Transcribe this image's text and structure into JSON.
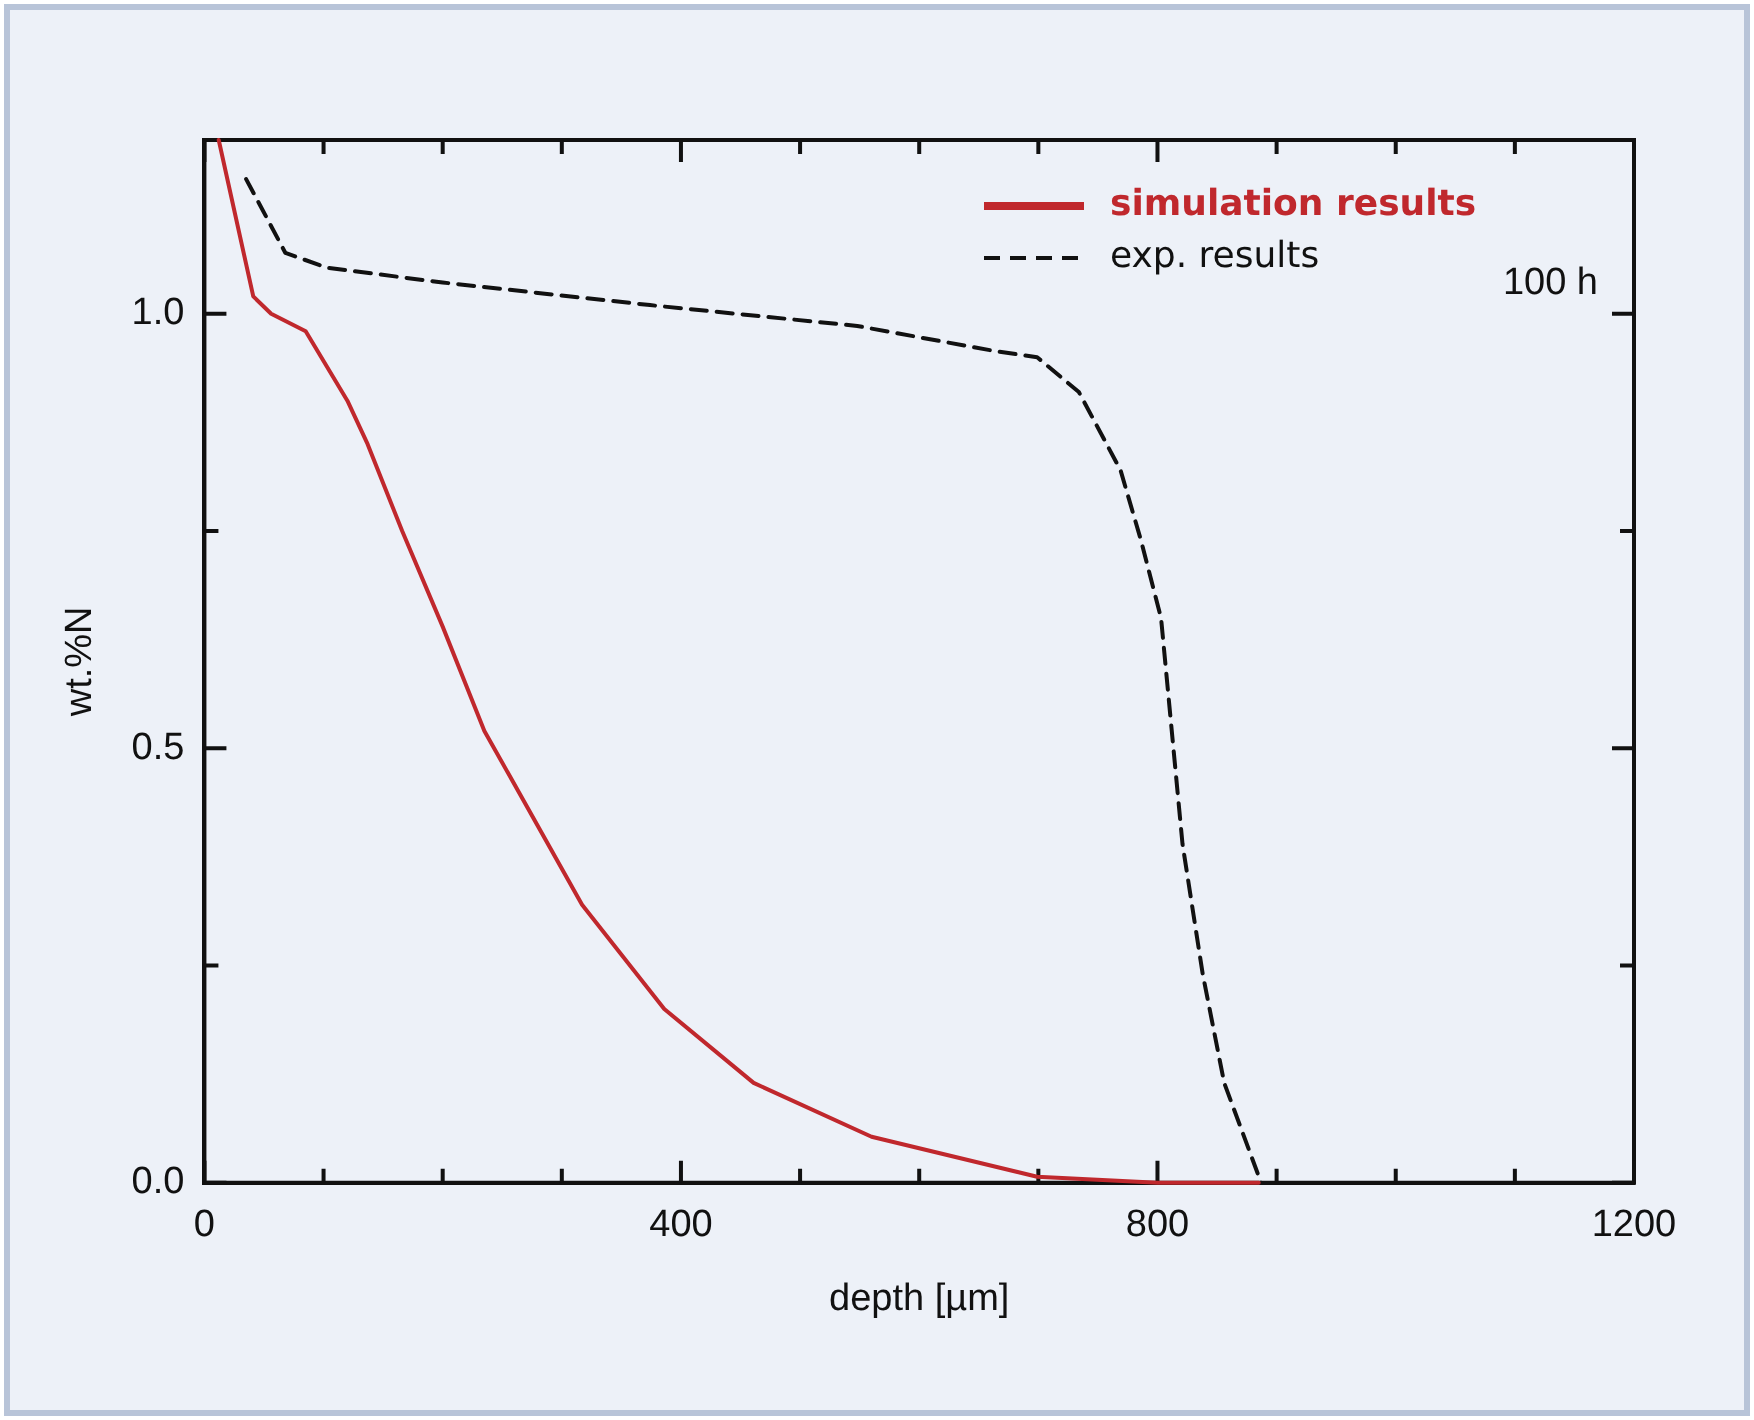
{
  "chart_data": {
    "type": "line",
    "xlabel": "depth [µm]",
    "ylabel": "wt.%N",
    "xlim": [
      0,
      1200
    ],
    "ylim": [
      0,
      1.2
    ],
    "xticks": [
      0,
      {
        "value": 100,
        "label": null
      },
      {
        "value": 200,
        "label": null
      },
      {
        "value": 300,
        "label": null
      },
      400,
      {
        "value": 500,
        "label": null
      },
      {
        "value": 600,
        "label": null
      },
      {
        "value": 700,
        "label": null
      },
      800,
      {
        "value": 900,
        "label": null
      },
      {
        "value": 1000,
        "label": null
      },
      {
        "value": 1100,
        "label": null
      },
      1200
    ],
    "yticks": [
      {
        "value": 0,
        "label": "0.0"
      },
      {
        "value": 0.25,
        "label": null
      },
      0.5,
      {
        "value": 0.75,
        "label": null
      },
      {
        "value": 1,
        "label": "1.0"
      }
    ],
    "grid": false,
    "legend": "top right",
    "marker": "none",
    "annotations": [
      "100 h"
    ],
    "series": [
      {
        "name": "simulation results",
        "color": "#c0282d",
        "line_style": "solid",
        "x": [
          12,
          41,
          56,
          85,
          120,
          137,
          166,
          200,
          235,
          317,
          386,
          461,
          560,
          699,
          800,
          885
        ],
        "values": [
          1.2,
          1.02,
          1.0,
          0.98,
          0.9,
          0.85,
          0.75,
          0.64,
          0.52,
          0.32,
          0.2,
          0.115,
          0.053,
          0.007,
          0,
          0
        ]
      },
      {
        "name": "exp. results",
        "color": "#111111",
        "line_style": "dashed",
        "x": [
          35,
          68,
          103,
          200,
          374,
          548,
          664,
          699,
          734,
          769,
          786,
          803,
          821,
          838,
          856,
          887
        ],
        "values": [
          1.155,
          1.07,
          1.053,
          1.036,
          1.01,
          0.986,
          0.957,
          0.95,
          0.91,
          0.82,
          0.74,
          0.65,
          0.39,
          0.24,
          0.115,
          0
        ]
      }
    ]
  }
}
